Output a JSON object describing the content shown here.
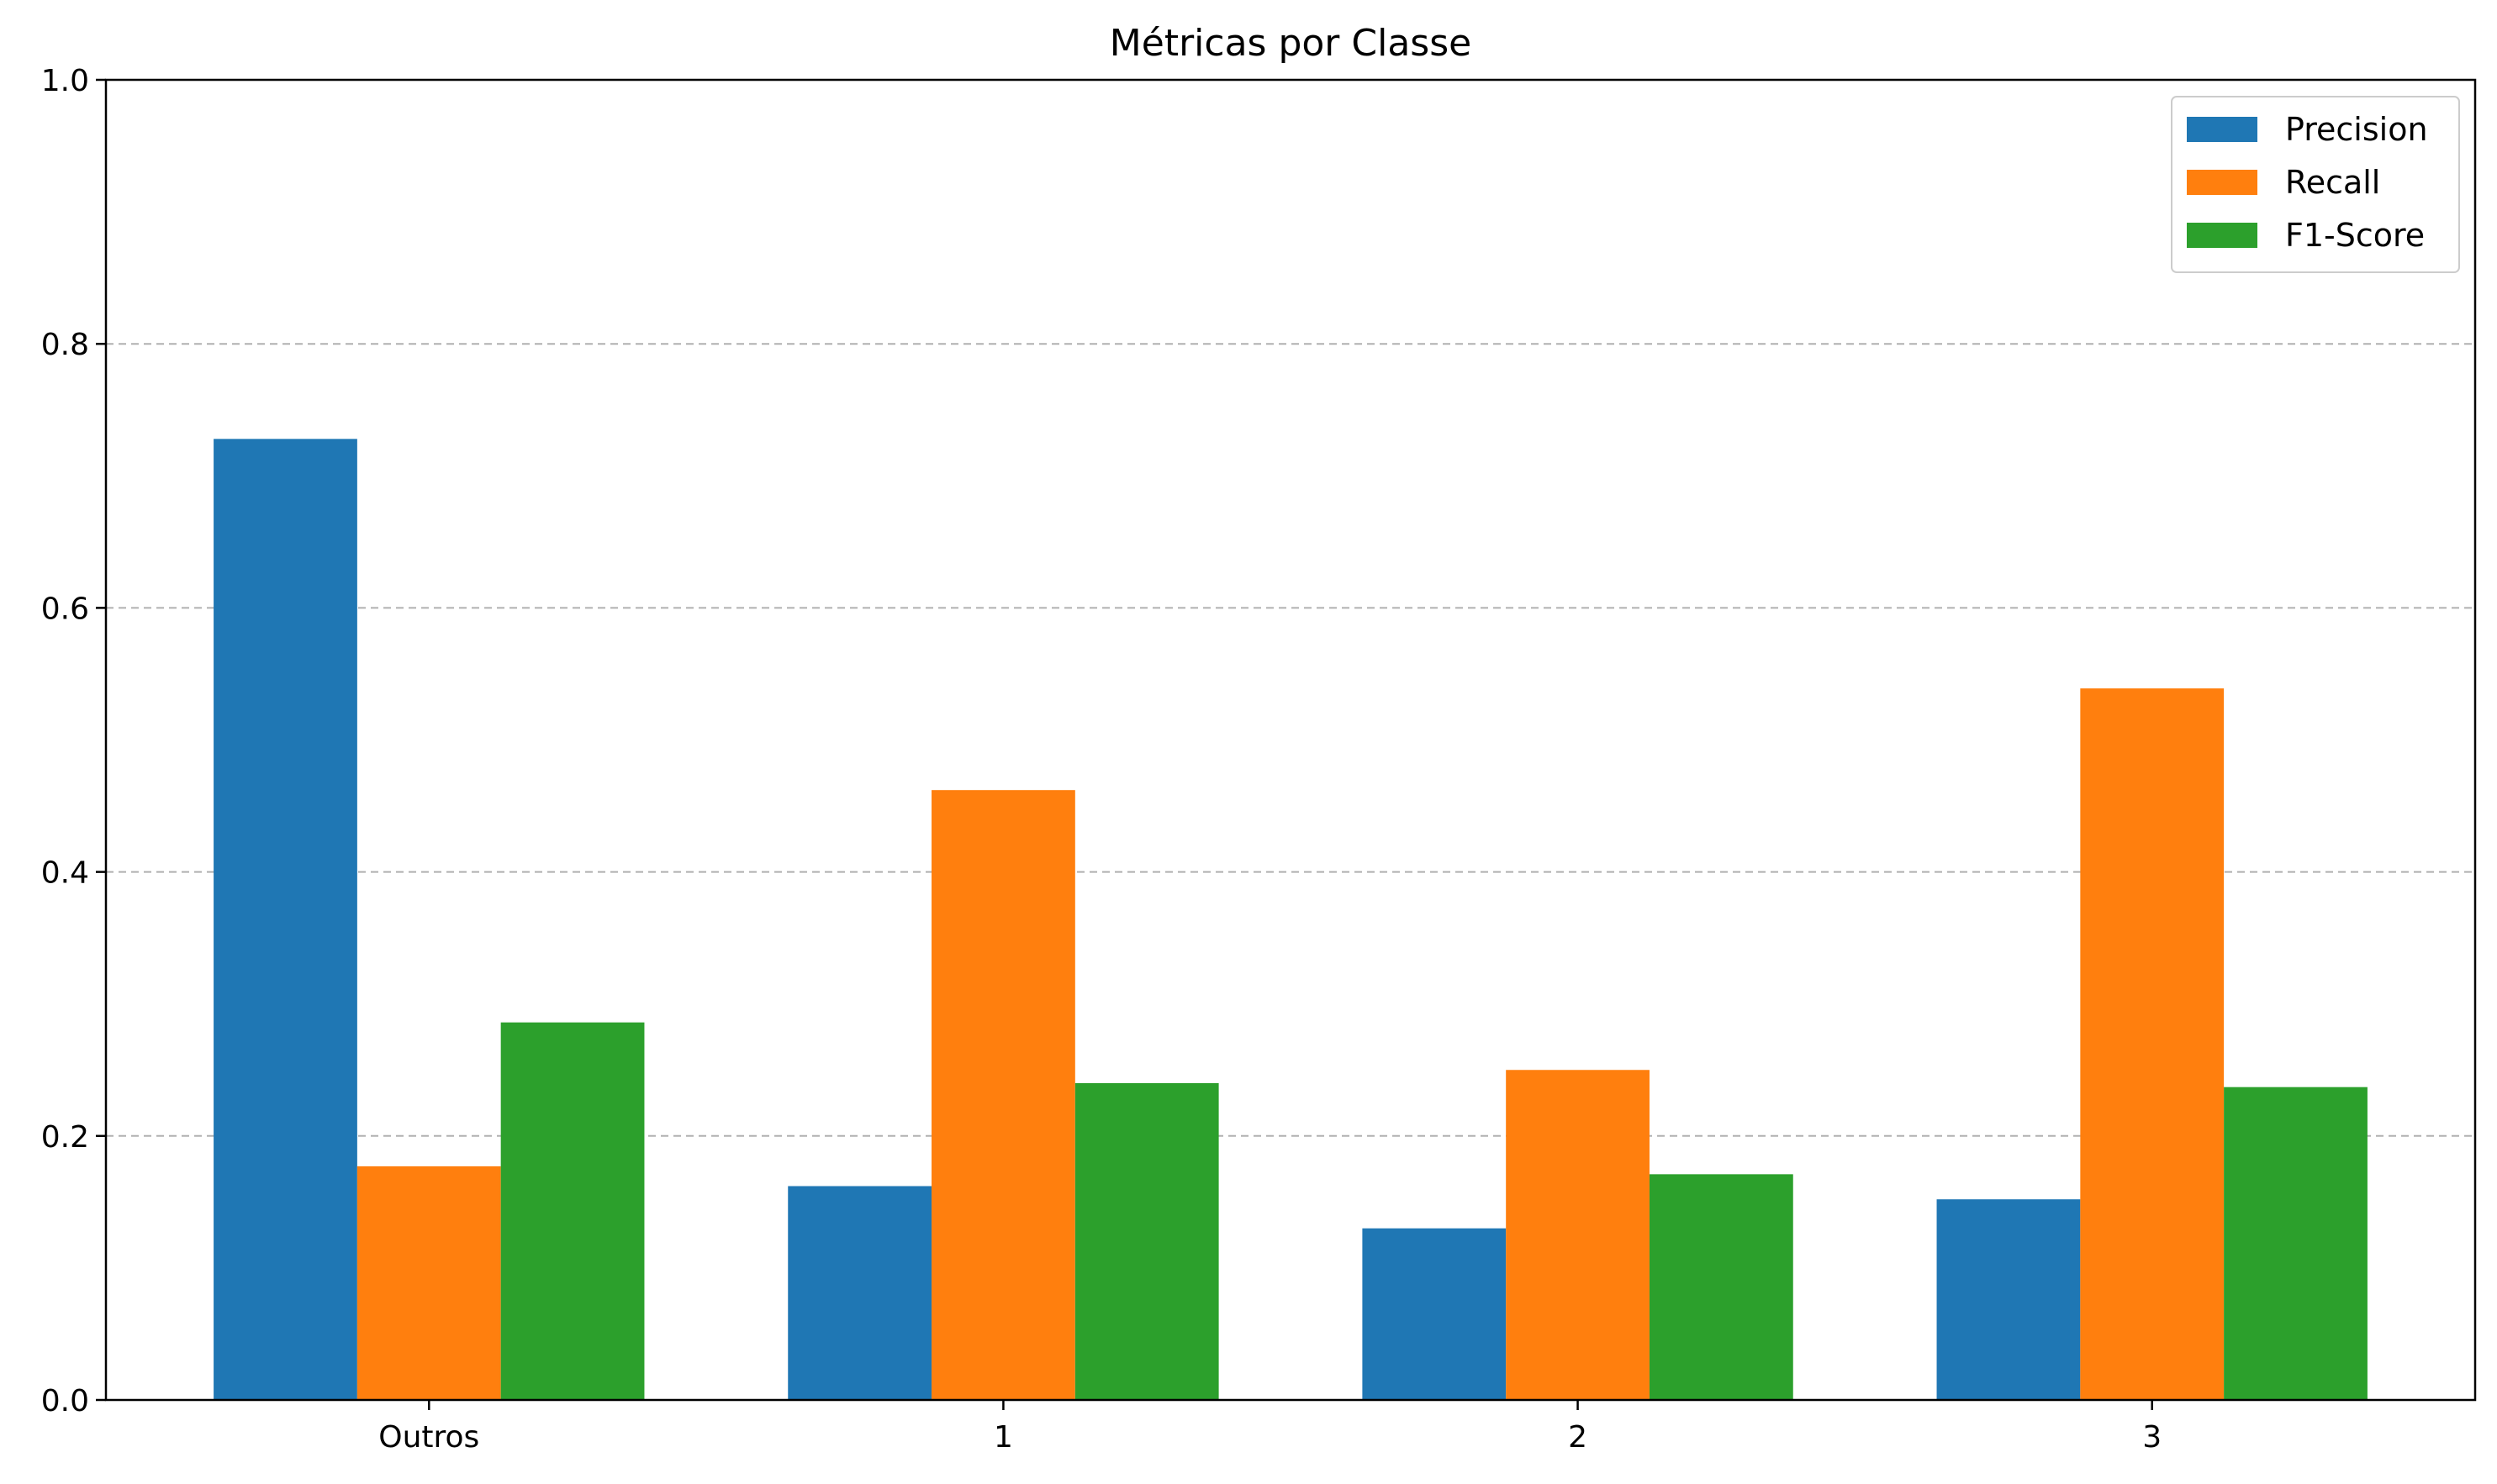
{
  "chart_data": {
    "type": "bar",
    "title": "Métricas por Classe",
    "xlabel": "",
    "ylabel": "",
    "categories": [
      "Outros",
      "1",
      "2",
      "3"
    ],
    "series": [
      {
        "name": "Precision",
        "color": "#1f77b4",
        "values": [
          0.728,
          0.162,
          0.13,
          0.152
        ]
      },
      {
        "name": "Recall",
        "color": "#ff7f0e",
        "values": [
          0.177,
          0.462,
          0.25,
          0.539
        ]
      },
      {
        "name": "F1-Score",
        "color": "#2ca02c",
        "values": [
          0.286,
          0.24,
          0.171,
          0.237
        ]
      }
    ],
    "ylim": [
      0,
      1.0
    ],
    "yticks": [
      "0.0",
      "0.2",
      "0.4",
      "0.6",
      "0.8",
      "1.0"
    ],
    "grid": "y-dashed",
    "legend": "top-right"
  }
}
